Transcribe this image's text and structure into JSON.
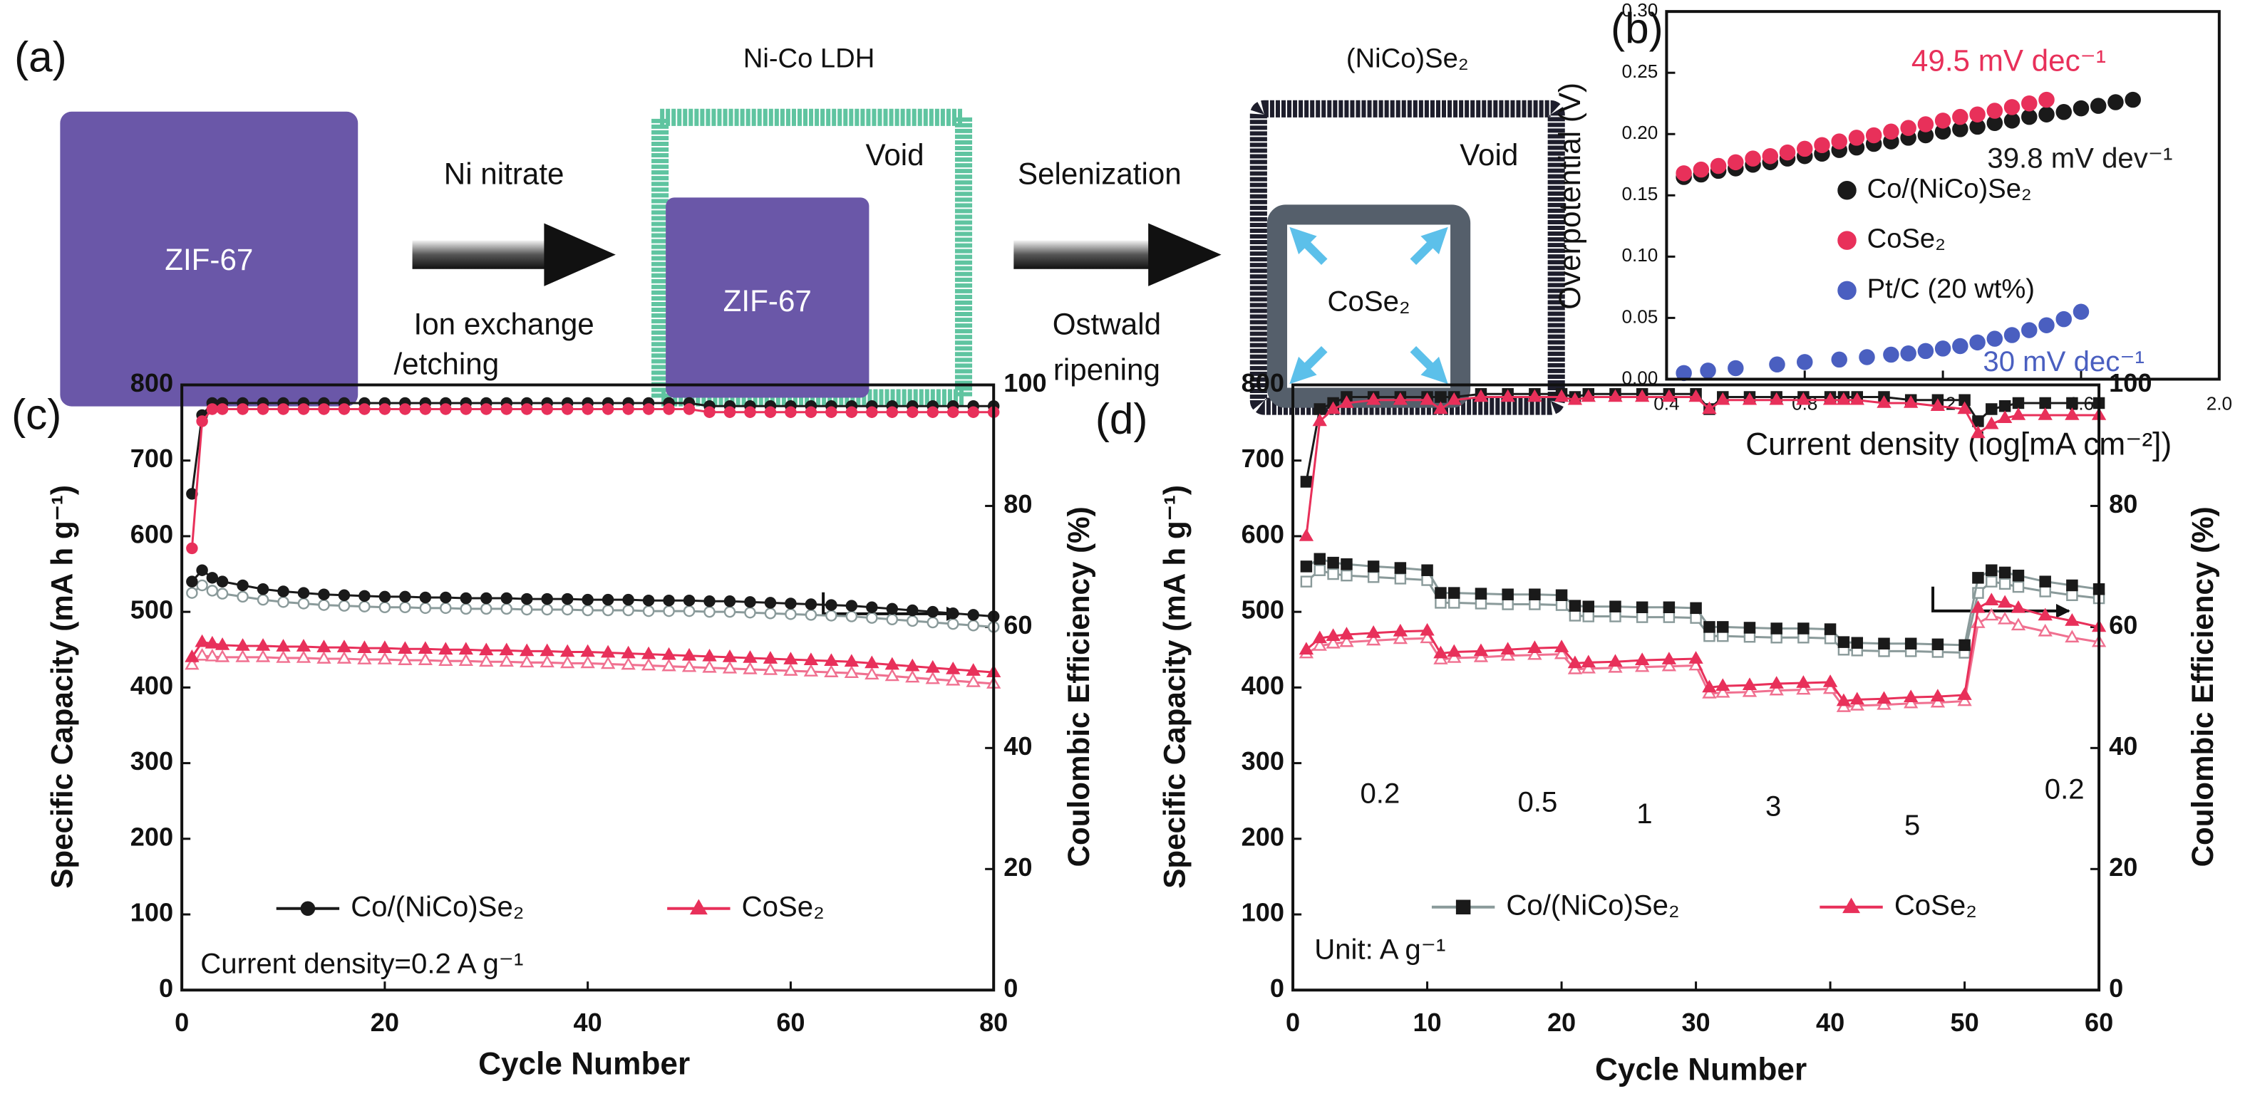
{
  "panel_a": {
    "labels": [
      "(a)",
      "ZIF-67",
      "Ni nitrate",
      "Ion exchange",
      "/etching",
      "Ni-Co LDH",
      "Void",
      "ZIF-67",
      "Selenization",
      "Ostwald",
      "ripening",
      "(NiCo)Se₂",
      "Void",
      "CoSe₂"
    ]
  },
  "chart_data": [
    {
      "type": "scatter",
      "panel_label": "(b)",
      "x_label": "Current density (log[mA cm⁻²])",
      "y_label": "Overpotential (V)",
      "xlim": [
        0.4,
        2.0
      ],
      "xticks": [
        0.4,
        0.8,
        1.2,
        1.6,
        {
          "value": 2,
          "label": "2.0"
        }
      ],
      "ylim": [
        0,
        0.3
      ],
      "yticks": [
        {
          "value": 0,
          "label": "0.00"
        },
        {
          "value": 0.05,
          "label": "0.05"
        },
        {
          "value": 0.1,
          "label": "0.10"
        },
        {
          "value": 0.15,
          "label": "0.15"
        },
        {
          "value": 0.2,
          "label": "0.20"
        },
        {
          "value": 0.25,
          "label": "0.25"
        },
        {
          "value": 0.3,
          "label": "0.30"
        }
      ],
      "series": [
        {
          "name": "Co/(NiCo)Se₂",
          "color": "#1a1a1a",
          "marker": "circle",
          "filled": true,
          "x": [
            0.45,
            0.5,
            0.55,
            0.6,
            0.65,
            0.7,
            0.75,
            0.8,
            0.85,
            0.9,
            0.95,
            1.0,
            1.05,
            1.1,
            1.15,
            1.2,
            1.25,
            1.3,
            1.35,
            1.4,
            1.45,
            1.5,
            1.55,
            1.6,
            1.65,
            1.7,
            1.75
          ],
          "values": [
            0.165,
            0.167,
            0.17,
            0.172,
            0.175,
            0.177,
            0.18,
            0.182,
            0.184,
            0.187,
            0.189,
            0.192,
            0.194,
            0.197,
            0.199,
            0.202,
            0.204,
            0.206,
            0.209,
            0.211,
            0.214,
            0.216,
            0.218,
            0.221,
            0.223,
            0.226,
            0.228
          ]
        },
        {
          "name": "CoSe₂",
          "color": "#e8305a",
          "marker": "circle",
          "filled": true,
          "x": [
            0.45,
            0.5,
            0.55,
            0.6,
            0.65,
            0.7,
            0.75,
            0.8,
            0.85,
            0.9,
            0.95,
            1.0,
            1.05,
            1.1,
            1.15,
            1.2,
            1.25,
            1.3,
            1.35,
            1.4,
            1.45,
            1.5
          ],
          "values": [
            0.168,
            0.171,
            0.174,
            0.177,
            0.18,
            0.182,
            0.185,
            0.188,
            0.191,
            0.194,
            0.197,
            0.199,
            0.202,
            0.205,
            0.208,
            0.211,
            0.214,
            0.216,
            0.219,
            0.222,
            0.225,
            0.228
          ]
        },
        {
          "name": "Pt/C (20 wt%)",
          "color": "#4a5fc0",
          "marker": "circle",
          "filled": true,
          "x": [
            0.45,
            0.52,
            0.6,
            0.72,
            0.8,
            0.9,
            0.98,
            1.05,
            1.1,
            1.15,
            1.2,
            1.25,
            1.3,
            1.35,
            1.4,
            1.45,
            1.5,
            1.55,
            1.6
          ],
          "values": [
            0.005,
            0.007,
            0.009,
            0.012,
            0.014,
            0.016,
            0.018,
            0.02,
            0.021,
            0.023,
            0.025,
            0.027,
            0.03,
            0.033,
            0.036,
            0.04,
            0.044,
            0.049,
            0.055
          ]
        }
      ],
      "annotations": [
        {
          "text": "49.5 mV dec⁻¹",
          "color": "#e8305a"
        },
        {
          "text": "39.8 mV dev⁻¹",
          "color": "#1a1a1a"
        },
        {
          "text": "30 mV dec⁻¹",
          "color": "#4a5fc0"
        }
      ]
    },
    {
      "type": "line",
      "panel_label": "(c)",
      "x_label": "Cycle Number",
      "y_label": "Specific Capacity (mA h g⁻¹)",
      "y2_label": "Coulombic Efficiency (%)",
      "xlim": [
        0,
        80
      ],
      "xticks": [
        0,
        20,
        40,
        60,
        80
      ],
      "ylim": [
        0,
        800
      ],
      "yticks": [
        0,
        100,
        200,
        300,
        400,
        500,
        600,
        700,
        800
      ],
      "y2lim": [
        0,
        100
      ],
      "y2ticks": [
        0,
        20,
        40,
        60,
        80,
        100
      ],
      "x": [
        1,
        2,
        3,
        4,
        6,
        8,
        10,
        12,
        14,
        16,
        18,
        20,
        22,
        24,
        26,
        28,
        30,
        32,
        34,
        36,
        38,
        40,
        42,
        44,
        46,
        48,
        50,
        52,
        54,
        56,
        58,
        60,
        62,
        64,
        66,
        68,
        70,
        72,
        74,
        76,
        78,
        80
      ],
      "series": [
        {
          "color": "#1a1a1a",
          "marker": "circle",
          "filled": true,
          "axis": "y2",
          "values": [
            82,
            95,
            97,
            97,
            97,
            97,
            97,
            97,
            97,
            97,
            97,
            97,
            97,
            97,
            97,
            97,
            97,
            97,
            97,
            97,
            97,
            97,
            97,
            97,
            97,
            97,
            97,
            96.5,
            96.5,
            96.5,
            96.5,
            96.5,
            96.5,
            96.5,
            96.5,
            96.5,
            96.5,
            96.5,
            96.5,
            96.5,
            96.5,
            96.5
          ]
        },
        {
          "color": "#e8305a",
          "marker": "circle",
          "filled": true,
          "axis": "y2",
          "values": [
            73,
            94,
            96,
            96,
            96,
            96,
            96,
            96,
            96,
            96,
            96,
            96,
            96,
            96,
            96,
            96,
            96,
            96,
            96,
            96,
            96,
            96,
            96,
            96,
            96,
            96,
            96,
            95.5,
            95.5,
            95.5,
            95.5,
            95.5,
            95.5,
            95.5,
            95.5,
            95.5,
            95.5,
            95.5,
            95.5,
            95.5,
            95.5,
            95.5
          ]
        },
        {
          "color": "#8a9a9a",
          "marker": "circle",
          "filled": false,
          "values": [
            525,
            535,
            528,
            524,
            520,
            516,
            513,
            511,
            509,
            508,
            507,
            506,
            506,
            505,
            505,
            504,
            504,
            504,
            503,
            503,
            503,
            502,
            502,
            502,
            501,
            501,
            501,
            500,
            500,
            499,
            498,
            497,
            496,
            495,
            494,
            492,
            490,
            488,
            486,
            484,
            482,
            480
          ]
        },
        {
          "name": "Co/(NiCo)Se₂",
          "color": "#1a1a1a",
          "marker": "circle",
          "filled": true,
          "values": [
            540,
            555,
            545,
            540,
            535,
            530,
            527,
            525,
            523,
            522,
            521,
            520,
            520,
            519,
            519,
            518,
            518,
            518,
            517,
            517,
            517,
            516,
            516,
            516,
            515,
            515,
            515,
            514,
            514,
            513,
            512,
            511,
            510,
            509,
            508,
            506,
            504,
            502,
            500,
            498,
            496,
            494
          ]
        },
        {
          "color": "#f07090",
          "marker": "triangle",
          "filled": false,
          "values": [
            430,
            442,
            441,
            440,
            440,
            440,
            439,
            439,
            438,
            438,
            437,
            437,
            436,
            436,
            435,
            435,
            434,
            434,
            433,
            433,
            432,
            432,
            431,
            430,
            429,
            428,
            427,
            426,
            425,
            424,
            423,
            422,
            421,
            420,
            419,
            417,
            415,
            413,
            411,
            409,
            407,
            405
          ]
        },
        {
          "name": "CoSe₂",
          "color": "#e8305a",
          "marker": "triangle",
          "filled": true,
          "values": [
            440,
            460,
            458,
            456,
            455,
            455,
            454,
            454,
            453,
            453,
            452,
            452,
            451,
            451,
            450,
            450,
            449,
            449,
            448,
            448,
            447,
            447,
            446,
            445,
            444,
            443,
            442,
            441,
            440,
            439,
            438,
            437,
            436,
            435,
            434,
            432,
            430,
            428,
            426,
            424,
            422,
            420
          ]
        }
      ],
      "annotations": [
        {
          "text": "Current density=0.2 A g⁻¹"
        }
      ]
    },
    {
      "type": "line",
      "panel_label": "(d)",
      "x_label": "Cycle Number",
      "y_label": "Specific Capacity (mA h g⁻¹)",
      "y2_label": "Coulombic Efficiency (%)",
      "xlim": [
        0,
        60
      ],
      "xticks": [
        0,
        10,
        20,
        30,
        40,
        50,
        60
      ],
      "ylim": [
        0,
        800
      ],
      "yticks": [
        0,
        100,
        200,
        300,
        400,
        500,
        600,
        700,
        800
      ],
      "y2lim": [
        0,
        100
      ],
      "y2ticks": [
        0,
        20,
        40,
        60,
        80,
        100
      ],
      "x": [
        1,
        2,
        3,
        4,
        6,
        8,
        10,
        11,
        12,
        14,
        16,
        18,
        20,
        21,
        22,
        24,
        26,
        28,
        30,
        31,
        32,
        34,
        36,
        38,
        40,
        41,
        42,
        44,
        46,
        48,
        50,
        51,
        52,
        53,
        54,
        56,
        58,
        60
      ],
      "series": [
        {
          "color": "#1a1a1a",
          "marker": "square",
          "filled": true,
          "axis": "y2",
          "values": [
            84,
            96,
            97,
            98,
            98,
            98,
            98,
            98,
            98,
            98.5,
            98.5,
            98.5,
            98.5,
            98,
            98.5,
            98.5,
            98.5,
            98.5,
            98.5,
            96,
            98,
            98,
            98,
            98,
            98,
            98,
            98,
            98,
            97.5,
            97.5,
            97.5,
            94,
            96,
            96.5,
            97,
            97,
            97,
            97
          ]
        },
        {
          "color": "#e8305a",
          "marker": "triangle",
          "filled": true,
          "axis": "y2",
          "values": [
            75,
            94,
            96,
            97,
            97.5,
            97.5,
            97.5,
            96,
            97.5,
            98,
            98,
            98,
            98,
            97.5,
            98,
            98,
            98,
            98,
            98,
            96,
            97.5,
            97.5,
            97.5,
            97.5,
            97.5,
            97.5,
            97.5,
            97,
            97,
            96.5,
            96,
            92,
            93.5,
            94.5,
            95,
            95,
            95,
            95
          ]
        },
        {
          "color": "#8a9a9a",
          "marker": "square",
          "filled": false,
          "values": [
            540,
            555,
            550,
            548,
            546,
            544,
            542,
            512,
            512,
            511,
            510,
            510,
            509,
            495,
            494,
            494,
            493,
            493,
            492,
            468,
            468,
            467,
            466,
            466,
            465,
            450,
            449,
            448,
            448,
            447,
            446,
            525,
            540,
            537,
            533,
            527,
            522,
            518
          ]
        },
        {
          "name": "Co/(NiCo)Se₂",
          "color": "#1a1a1a",
          "line_color": "#8a9a9a",
          "marker": "square",
          "filled": true,
          "values": [
            560,
            570,
            565,
            563,
            560,
            558,
            555,
            525,
            525,
            524,
            523,
            523,
            522,
            508,
            507,
            507,
            506,
            506,
            505,
            480,
            480,
            479,
            478,
            478,
            477,
            460,
            459,
            458,
            458,
            457,
            456,
            545,
            555,
            552,
            548,
            540,
            535,
            530
          ]
        },
        {
          "color": "#f07090",
          "marker": "triangle",
          "filled": false,
          "values": [
            445,
            455,
            458,
            460,
            462,
            464,
            465,
            437,
            439,
            440,
            442,
            443,
            444,
            424,
            425,
            426,
            427,
            428,
            429,
            392,
            393,
            394,
            396,
            397,
            398,
            374,
            376,
            377,
            379,
            380,
            382,
            485,
            495,
            490,
            482,
            474,
            466,
            460
          ]
        },
        {
          "name": "CoSe₂",
          "color": "#e8305a",
          "marker": "triangle",
          "filled": true,
          "values": [
            450,
            465,
            468,
            470,
            472,
            474,
            475,
            445,
            447,
            448,
            450,
            452,
            453,
            432,
            433,
            434,
            436,
            437,
            438,
            400,
            402,
            403,
            405,
            406,
            407,
            382,
            384,
            385,
            387,
            388,
            390,
            505,
            515,
            512,
            505,
            495,
            488,
            480
          ]
        }
      ],
      "annotations": [
        {
          "text": "Unit: A g⁻¹"
        },
        {
          "text": "0.2"
        },
        {
          "text": "0.5"
        },
        {
          "text": "1"
        },
        {
          "text": "3"
        },
        {
          "text": "5"
        },
        {
          "text": "0.2"
        }
      ]
    }
  ]
}
